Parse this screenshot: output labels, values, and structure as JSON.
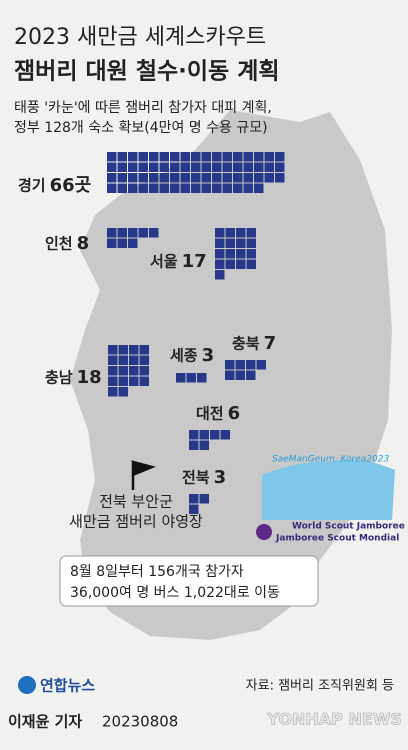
{
  "chart_data": {
    "type": "unit",
    "title": "2023 새만금 세계스카우트",
    "subtitle": "잼버리 대원 철수·이동 계획",
    "description": [
      "태풍 '카눈'에 따른 잼버리 참가자 대피 계획,",
      "정부 128개 숙소 확보(4만여 명 수용 규모)"
    ],
    "categories": [
      "경기",
      "인천",
      "서울",
      "충남",
      "세종",
      "충북",
      "대전",
      "전북"
    ],
    "values": [
      66,
      8,
      17,
      18,
      3,
      7,
      6,
      3
    ],
    "value_labels": [
      "66곳",
      "8",
      "17",
      "18",
      "3",
      "7",
      "6",
      "3"
    ],
    "color": "#27378a",
    "annotations": [
      "전북 부안군",
      "새만금 잼버리 야영장"
    ],
    "note": [
      "8월 8일부터 156개국 참가자",
      "36,000여 명 버스 1,022대로 이동"
    ],
    "logo": [
      "SaeManGeum. Korea2023",
      "World Scout Jamboree",
      "Jamboree Scout Mondial"
    ],
    "source": "자료: 잼버리 조직위원회 등",
    "agency": "연합뉴스",
    "credit": "이재윤 기자",
    "date": "20230808",
    "watermark": "YONHAP NEWS"
  }
}
